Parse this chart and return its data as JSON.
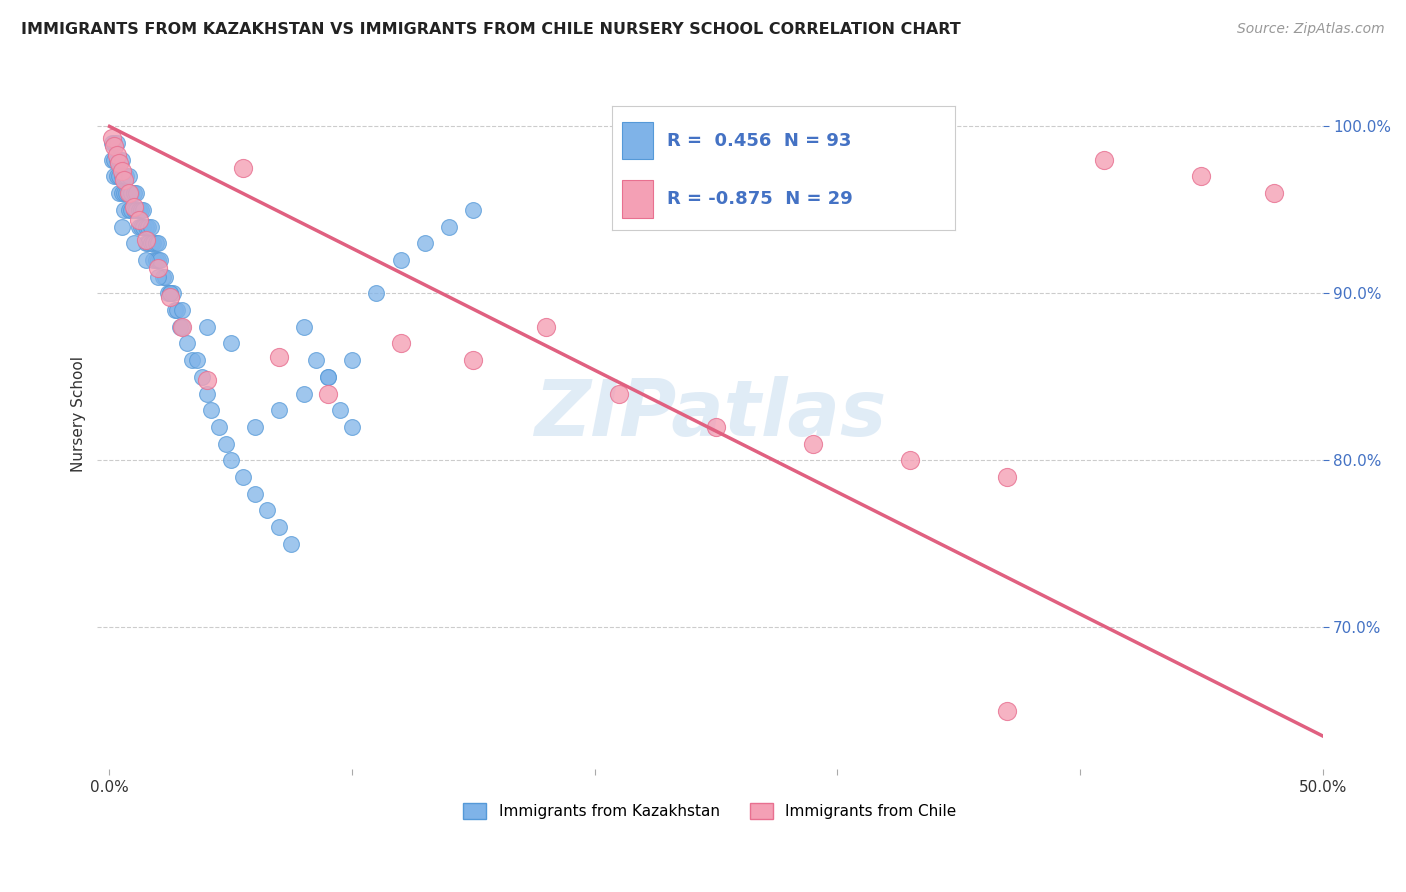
{
  "title": "IMMIGRANTS FROM KAZAKHSTAN VS IMMIGRANTS FROM CHILE NURSERY SCHOOL CORRELATION CHART",
  "source": "Source: ZipAtlas.com",
  "ylabel": "Nursery School",
  "xlim": [
    -0.005,
    0.5
  ],
  "ylim": [
    0.615,
    1.04
  ],
  "xticks": [
    0.0,
    0.1,
    0.2,
    0.3,
    0.4,
    0.5
  ],
  "xtick_labels": [
    "0.0%",
    "",
    "",
    "",
    "",
    "50.0%"
  ],
  "yticks": [
    0.7,
    0.8,
    0.9,
    1.0
  ],
  "ytick_labels": [
    "70.0%",
    "80.0%",
    "90.0%",
    "100.0%"
  ],
  "legend_R_kaz": "0.456",
  "legend_N_kaz": "93",
  "legend_R_chile": "-0.875",
  "legend_N_chile": "29",
  "kaz_color": "#7fb3e8",
  "chile_color": "#f4a0b5",
  "kaz_edge_color": "#5599d8",
  "chile_edge_color": "#e87090",
  "trendline_chile_color": "#e06080",
  "watermark": "ZIPatlas",
  "kaz_x": [
    0.001,
    0.001,
    0.002,
    0.002,
    0.002,
    0.003,
    0.003,
    0.003,
    0.004,
    0.004,
    0.004,
    0.005,
    0.005,
    0.005,
    0.006,
    0.006,
    0.006,
    0.007,
    0.007,
    0.008,
    0.008,
    0.008,
    0.009,
    0.009,
    0.01,
    0.01,
    0.011,
    0.011,
    0.012,
    0.012,
    0.013,
    0.013,
    0.014,
    0.014,
    0.015,
    0.015,
    0.016,
    0.016,
    0.017,
    0.017,
    0.018,
    0.018,
    0.019,
    0.019,
    0.02,
    0.02,
    0.021,
    0.022,
    0.023,
    0.024,
    0.025,
    0.026,
    0.027,
    0.028,
    0.029,
    0.03,
    0.032,
    0.034,
    0.036,
    0.038,
    0.04,
    0.042,
    0.045,
    0.048,
    0.05,
    0.055,
    0.06,
    0.065,
    0.07,
    0.075,
    0.08,
    0.085,
    0.09,
    0.095,
    0.1,
    0.11,
    0.12,
    0.13,
    0.14,
    0.15,
    0.06,
    0.07,
    0.08,
    0.09,
    0.1,
    0.05,
    0.04,
    0.03,
    0.025,
    0.02,
    0.015,
    0.01,
    0.005
  ],
  "kaz_y": [
    0.99,
    0.98,
    0.99,
    0.98,
    0.97,
    0.99,
    0.98,
    0.97,
    0.98,
    0.97,
    0.96,
    0.98,
    0.97,
    0.96,
    0.97,
    0.96,
    0.95,
    0.97,
    0.96,
    0.97,
    0.96,
    0.95,
    0.96,
    0.95,
    0.96,
    0.95,
    0.96,
    0.95,
    0.95,
    0.94,
    0.95,
    0.94,
    0.95,
    0.94,
    0.94,
    0.93,
    0.94,
    0.93,
    0.94,
    0.93,
    0.93,
    0.92,
    0.93,
    0.92,
    0.93,
    0.92,
    0.92,
    0.91,
    0.91,
    0.9,
    0.9,
    0.9,
    0.89,
    0.89,
    0.88,
    0.88,
    0.87,
    0.86,
    0.86,
    0.85,
    0.84,
    0.83,
    0.82,
    0.81,
    0.8,
    0.79,
    0.78,
    0.77,
    0.76,
    0.75,
    0.88,
    0.86,
    0.85,
    0.83,
    0.82,
    0.9,
    0.92,
    0.93,
    0.94,
    0.95,
    0.82,
    0.83,
    0.84,
    0.85,
    0.86,
    0.87,
    0.88,
    0.89,
    0.9,
    0.91,
    0.92,
    0.93,
    0.94
  ],
  "chile_x": [
    0.001,
    0.002,
    0.003,
    0.004,
    0.005,
    0.006,
    0.008,
    0.01,
    0.012,
    0.015,
    0.02,
    0.025,
    0.03,
    0.04,
    0.055,
    0.07,
    0.09,
    0.12,
    0.15,
    0.18,
    0.21,
    0.25,
    0.29,
    0.33,
    0.37,
    0.41,
    0.45,
    0.48,
    0.37
  ],
  "chile_y": [
    0.993,
    0.988,
    0.983,
    0.978,
    0.973,
    0.968,
    0.96,
    0.952,
    0.944,
    0.932,
    0.915,
    0.898,
    0.88,
    0.848,
    0.975,
    0.862,
    0.84,
    0.87,
    0.86,
    0.88,
    0.84,
    0.82,
    0.81,
    0.8,
    0.79,
    0.98,
    0.97,
    0.96,
    0.65
  ],
  "chile_trend_x": [
    0.0,
    0.5
  ],
  "chile_trend_y": [
    1.0,
    0.635
  ]
}
